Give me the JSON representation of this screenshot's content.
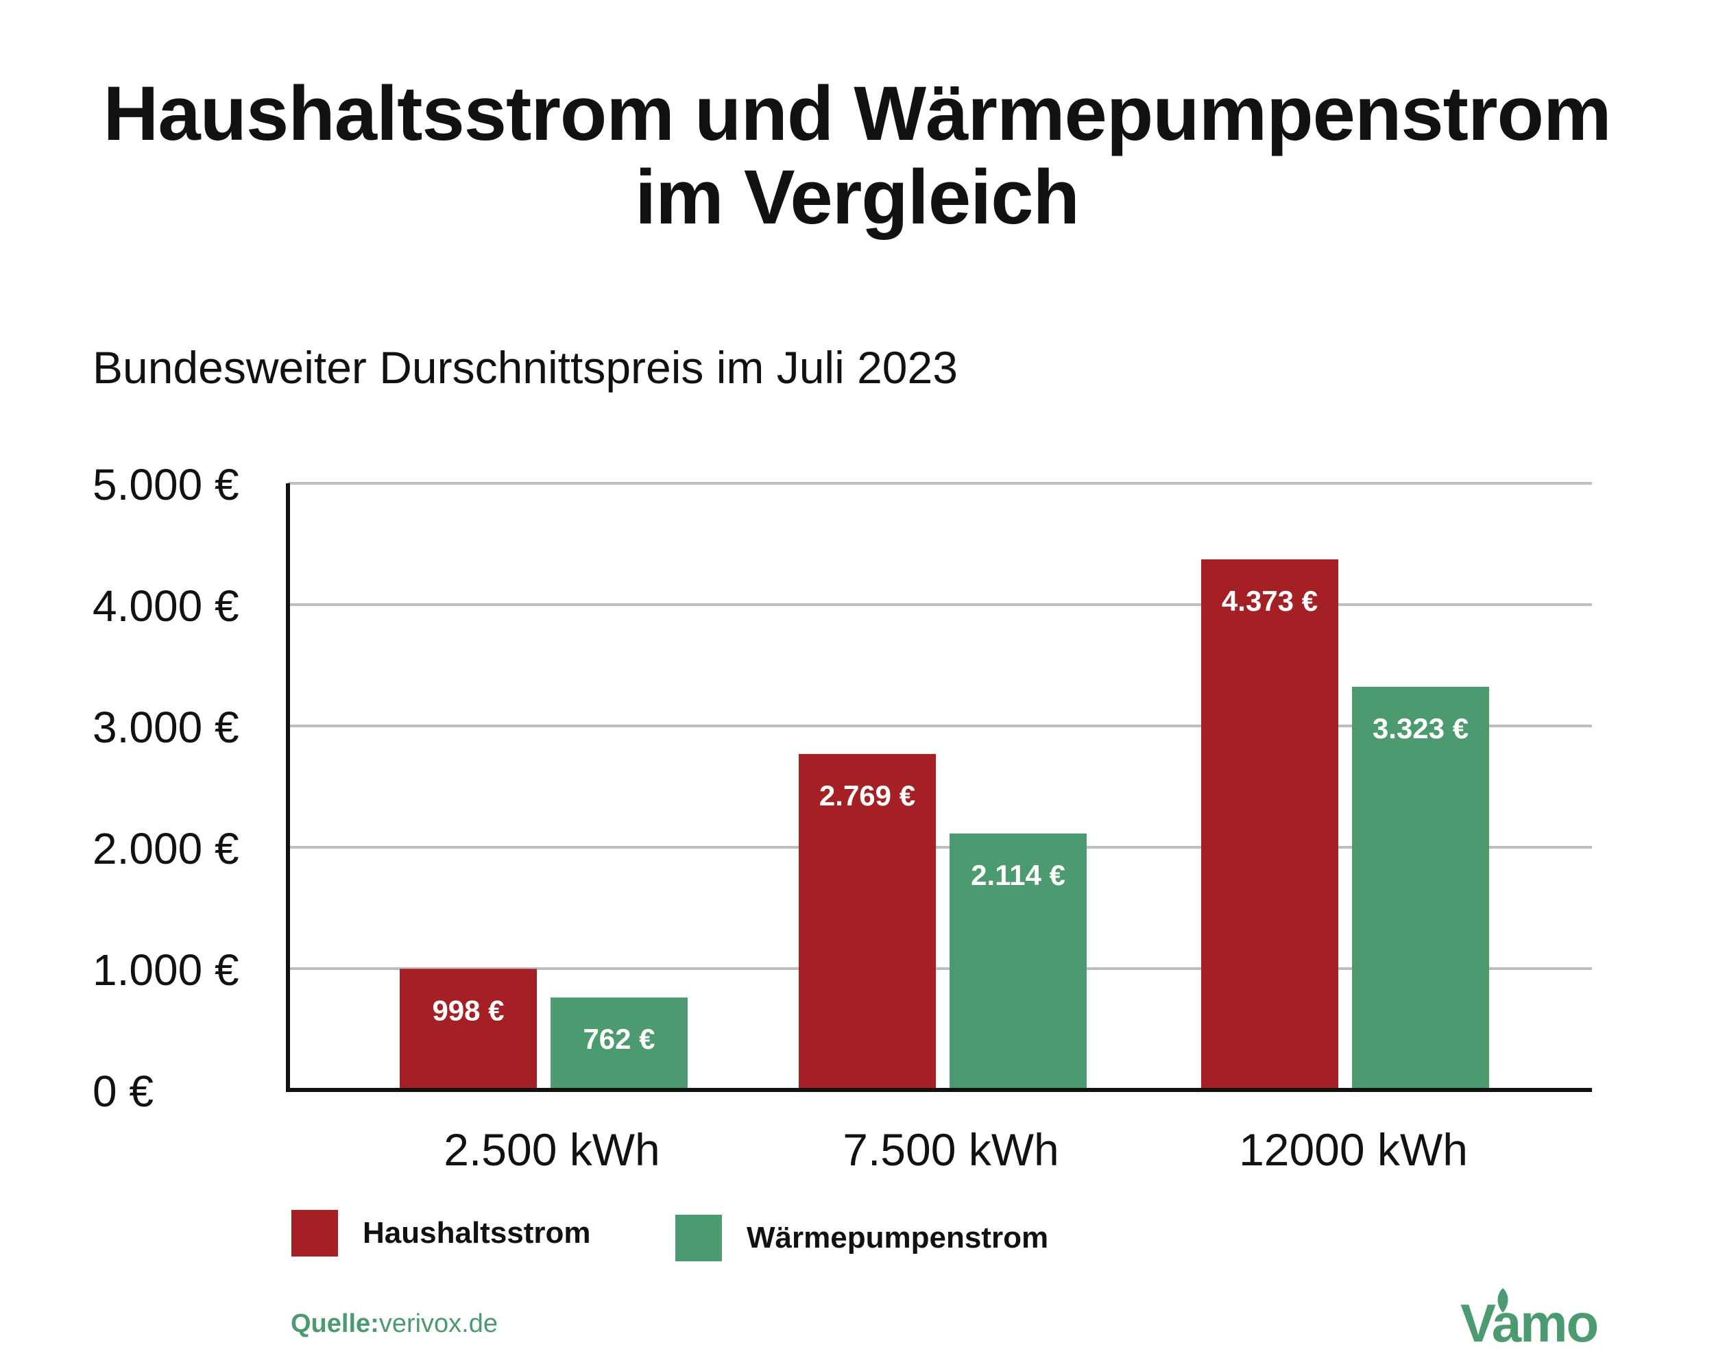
{
  "title_line1": "Haushaltsstrom und Wärmepumpenstrom",
  "title_line2": "im Vergleich",
  "subtitle": "Bundesweiter Durschnittspreis im Juli 2023",
  "colors": {
    "haushalt": "#a52025",
    "waerme": "#4c9a6f",
    "grid": "#bdbdbd",
    "axis": "#111111"
  },
  "chart_data": {
    "type": "bar",
    "categories": [
      "2.500 kWh",
      "7.500 kWh",
      "12000 kWh"
    ],
    "series": [
      {
        "name": "Haushaltsstrom",
        "values": [
          998,
          2769,
          4373
        ],
        "labels": [
          "998 €",
          "2.769 €",
          "4.373 €"
        ],
        "color": "#a52025"
      },
      {
        "name": "Wärmepumpenstrom",
        "values": [
          762,
          2114,
          3323
        ],
        "labels": [
          "762 €",
          "2.114 €",
          "3.323 €"
        ],
        "color": "#4c9a6f"
      }
    ],
    "yticks": [
      0,
      1000,
      2000,
      3000,
      4000,
      5000
    ],
    "ytick_labels": [
      "0 €",
      "1.000 €",
      "2.000 €",
      "3.000 €",
      "4.000 €",
      "5.000 €"
    ],
    "ylim": [
      0,
      5000
    ],
    "grid": true,
    "legend_position": "bottom-left"
  },
  "legend": {
    "haushalt": "Haushaltsstrom",
    "waerme": "Wärmepumpenstrom"
  },
  "source": {
    "key": "Quelle:",
    "value": "verivox.de"
  },
  "logo": {
    "text": "Vamo",
    "icon": "leaf-logo-icon"
  }
}
